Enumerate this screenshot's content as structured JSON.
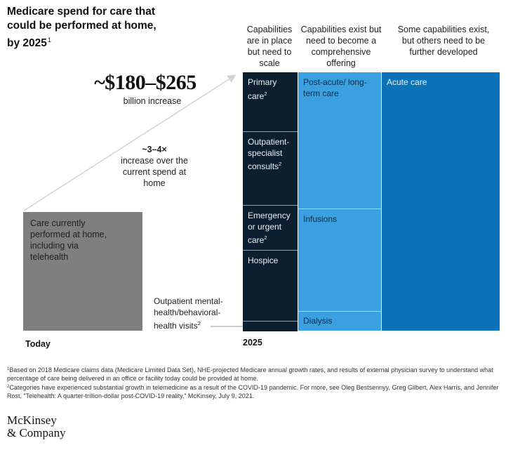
{
  "title": "Medicare spend for care that could be performed at home, by 2025",
  "title_note": "1",
  "column_headers": [
    "Capabilities are in place but need to scale",
    "Capabilities exist but need to become a comprehensive offering",
    "Some capabilities exist, but others need to be further developed"
  ],
  "increase": {
    "value": "~$180–$265",
    "caption": "billion increase",
    "multiple": "~3–4×",
    "multiple_caption": "increase over the current spend at home"
  },
  "today": {
    "label": "Today",
    "box_text": "Care currently performed at home, including via telehealth"
  },
  "future": {
    "label": "2025",
    "callout": "Outpatient mental-health/behavioral-health visits",
    "callout_note": "2"
  },
  "segments": {
    "col1": [
      {
        "label": "Primary care",
        "note": "2"
      },
      {
        "label": "Outpatient-specialist consults",
        "note": "2"
      },
      {
        "label": "Emergency or urgent care",
        "note": "2"
      },
      {
        "label": "Hospice",
        "note": ""
      }
    ],
    "col2": [
      {
        "label": "Post-acute/ long-term care",
        "note": ""
      },
      {
        "label": "Infusions",
        "note": ""
      },
      {
        "label": "Dialysis",
        "note": ""
      }
    ],
    "col3": [
      {
        "label": "Acute care",
        "note": ""
      }
    ]
  },
  "chart_data": {
    "type": "bar",
    "title": "Medicare spend for care that could be performed at home, by 2025",
    "categories": [
      "Today",
      "2025"
    ],
    "headline_increase": "~$180–$265 billion increase",
    "multiple": "~3–4× increase over the current spend at home"
  },
  "footnotes": [
    {
      "mark": "1",
      "text": "Based on 2018 Medicare claims data (Medicare Limited Data Set), NHE-projected Medicare annual growth rates, and results of external physician survey to understand what percentage of care being delivered in an office or facility today could be provided at home."
    },
    {
      "mark": "2",
      "text": "Categories have experienced substantial growth in telemedicine as a result of the COVID-19 pandemic. For more, see Oleg Bestsennyy, Greg Gilbert, Alex Harris, and Jennifer Rost, “Telehealth: A quarter-trillion-dollar post-COVID-19 reality,” McKinsey, July 9, 2021."
    }
  ],
  "brand": {
    "line1": "McKinsey",
    "line2": "& Company"
  },
  "colors": {
    "today_bar": "#7f7f7f",
    "col1": "#0b1f30",
    "col2": "#3aa0e0",
    "col3": "#0b74b8",
    "arrow": "#d3d3d3"
  }
}
